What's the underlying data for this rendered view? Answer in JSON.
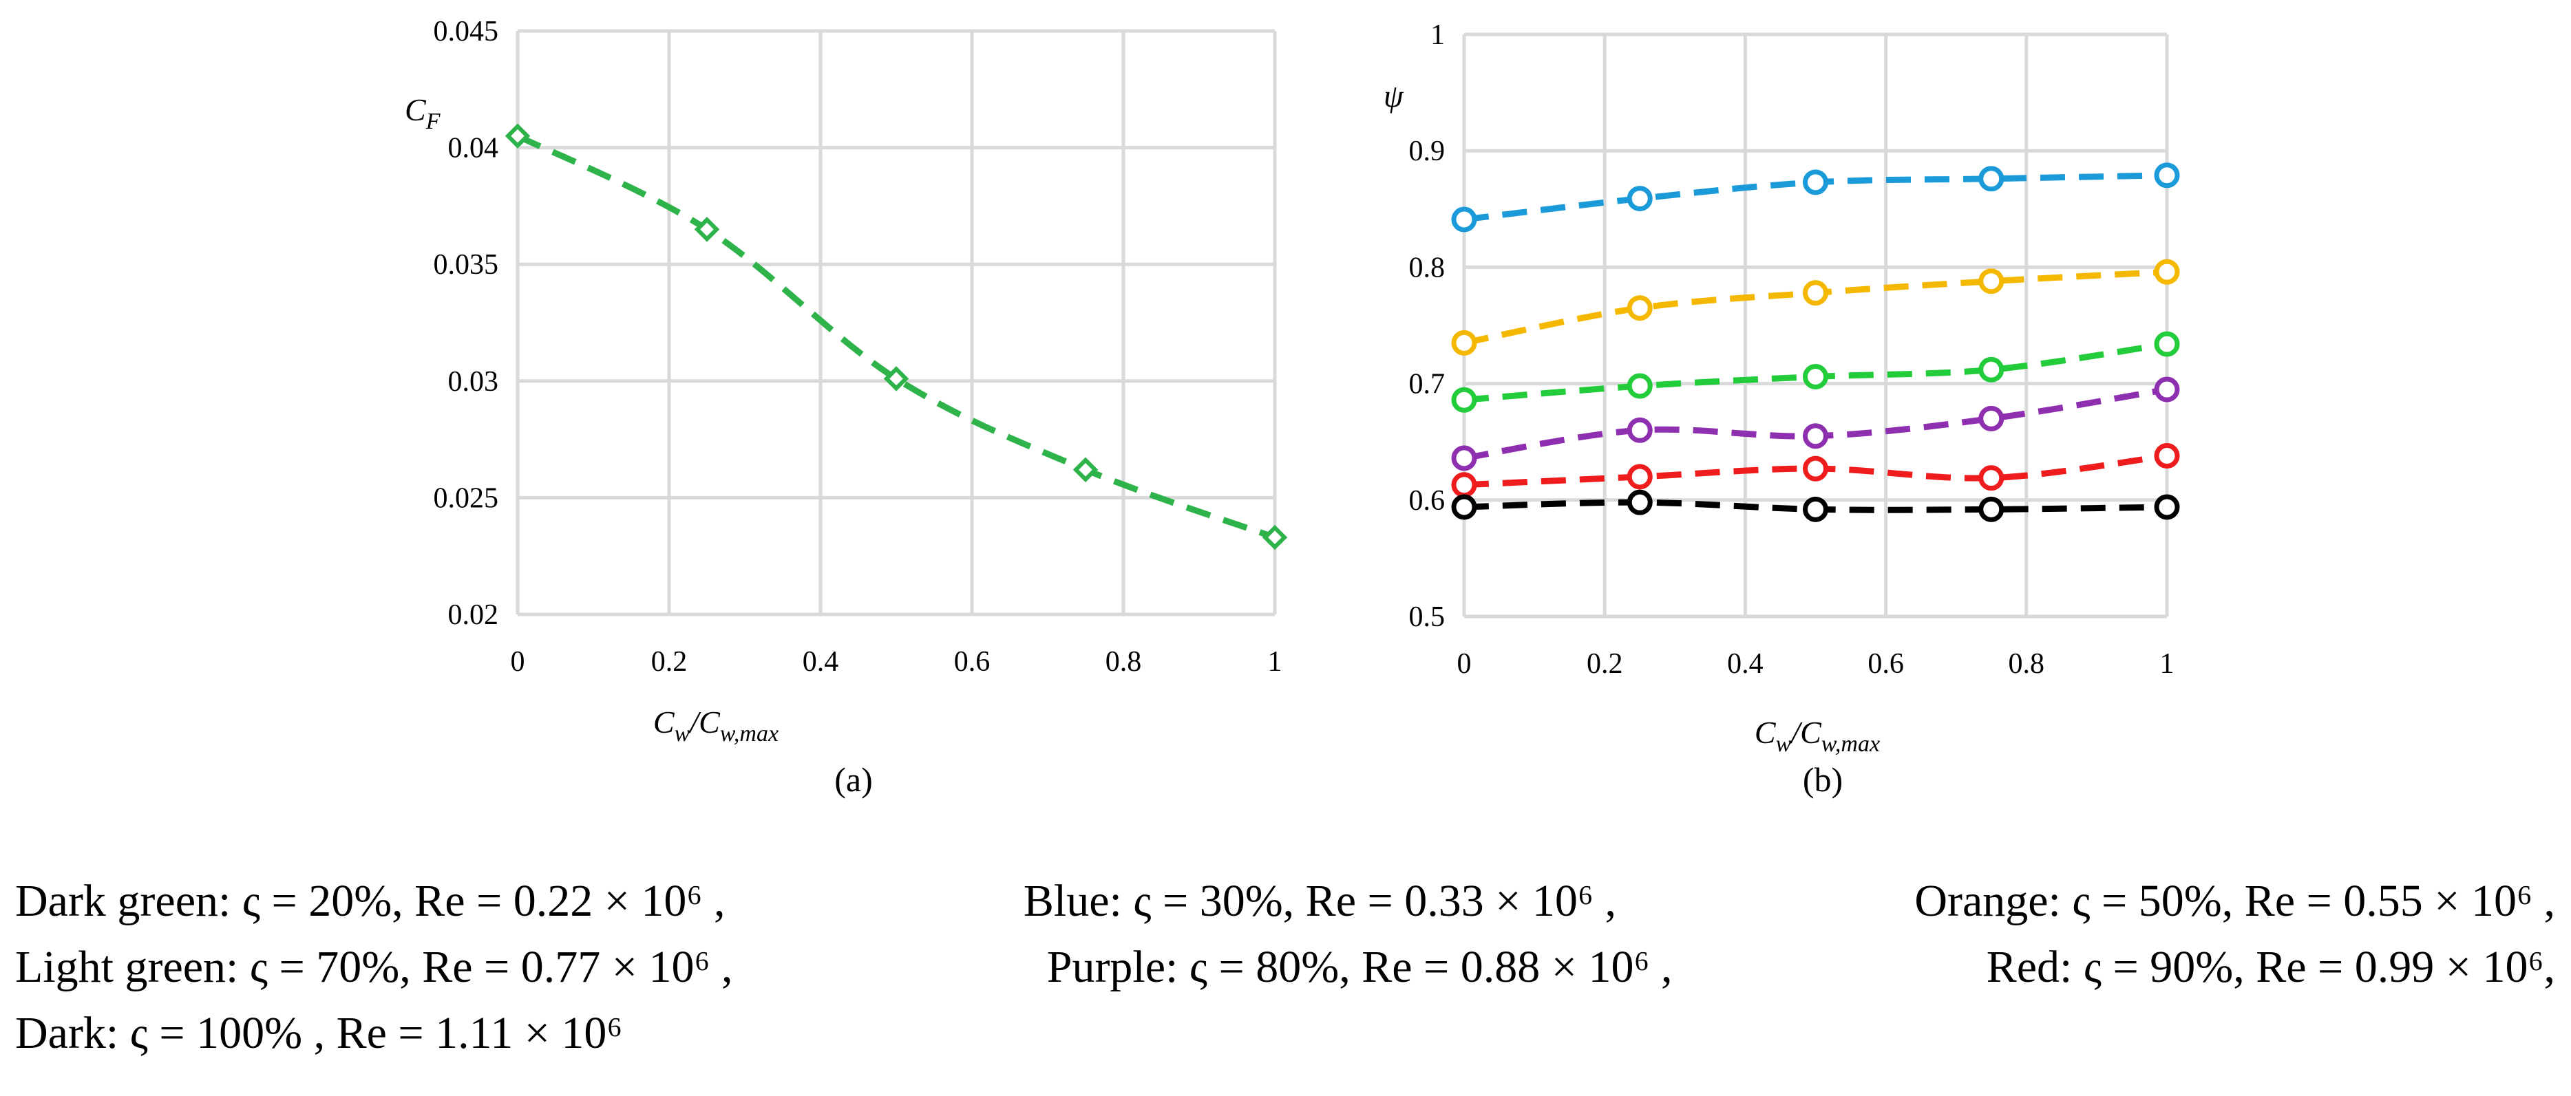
{
  "chart_data": [
    {
      "type": "line",
      "panel_label": "(a)",
      "ylabel": "C",
      "ylabel_sub": "F",
      "xlabel": "C",
      "xlabel_sub_num": "w",
      "xlabel_den": "C",
      "xlabel_sub_den": "w,max",
      "xlim": [
        0,
        1
      ],
      "ylim": [
        0.02,
        0.045
      ],
      "xticks": [
        "0",
        "0.2",
        "0.4",
        "0.6",
        "0.8",
        "1"
      ],
      "yticks": [
        "0.02",
        "0.025",
        "0.03",
        "0.035",
        "0.04",
        "0.045"
      ],
      "grid": true,
      "series": [
        {
          "name": "Dark green",
          "color": "#2db34a",
          "marker": "diamond",
          "x": [
            0,
            0.25,
            0.5,
            0.75,
            1
          ],
          "y": [
            0.0405,
            0.0365,
            0.0301,
            0.0262,
            0.0233
          ]
        }
      ]
    },
    {
      "type": "line",
      "panel_label": "(b)",
      "ylabel": "ψ",
      "xlabel": "C",
      "xlabel_sub_num": "w",
      "xlabel_den": "C",
      "xlabel_sub_den": "w,max",
      "xlim": [
        0,
        1
      ],
      "ylim": [
        0.5,
        1
      ],
      "xticks": [
        "0",
        "0.2",
        "0.4",
        "0.6",
        "0.8",
        "1"
      ],
      "yticks": [
        "0.5",
        "0.6",
        "0.7",
        "0.8",
        "0.9",
        "1"
      ],
      "grid": true,
      "series": [
        {
          "name": "Blue",
          "color": "#1a9ad8",
          "marker": "circle",
          "x": [
            0,
            0.25,
            0.5,
            0.75,
            1
          ],
          "y": [
            0.841,
            0.859,
            0.873,
            0.876,
            0.879
          ]
        },
        {
          "name": "Orange",
          "color": "#f5b800",
          "marker": "circle",
          "x": [
            0,
            0.25,
            0.5,
            0.75,
            1
          ],
          "y": [
            0.735,
            0.765,
            0.778,
            0.788,
            0.796
          ]
        },
        {
          "name": "Light green",
          "color": "#22cc3a",
          "marker": "circle",
          "x": [
            0,
            0.25,
            0.5,
            0.75,
            1
          ],
          "y": [
            0.686,
            0.698,
            0.706,
            0.712,
            0.734
          ]
        },
        {
          "name": "Purple",
          "color": "#8e2fb0",
          "marker": "circle",
          "x": [
            0,
            0.25,
            0.5,
            0.75,
            1
          ],
          "y": [
            0.636,
            0.66,
            0.655,
            0.67,
            0.695
          ]
        },
        {
          "name": "Red",
          "color": "#ee1c1c",
          "marker": "circle",
          "x": [
            0,
            0.25,
            0.5,
            0.75,
            1
          ],
          "y": [
            0.613,
            0.62,
            0.627,
            0.619,
            0.638
          ]
        },
        {
          "name": "Dark",
          "color": "#000000",
          "marker": "circle",
          "x": [
            0,
            0.25,
            0.5,
            0.75,
            1
          ],
          "y": [
            0.594,
            0.598,
            0.592,
            0.592,
            0.594
          ]
        }
      ]
    }
  ],
  "caption": {
    "line1": [
      "Dark green: ς = 20%, Re = 0.22 × 10⁶ ,",
      "Blue: ς = 30%, Re = 0.33 × 10⁶ ,",
      "Orange: ς = 50%, Re = 0.55 × 10⁶ ,"
    ],
    "line2": [
      "Light green: ς = 70%, Re = 0.77 × 10⁶ ,",
      "Purple: ς = 80%, Re = 0.88 × 10⁶ ,",
      "Red: ς = 90%, Re = 0.99 × 10⁶,"
    ],
    "line3": [
      "Dark: ς = 100% , Re = 1.11 × 10⁶"
    ]
  }
}
